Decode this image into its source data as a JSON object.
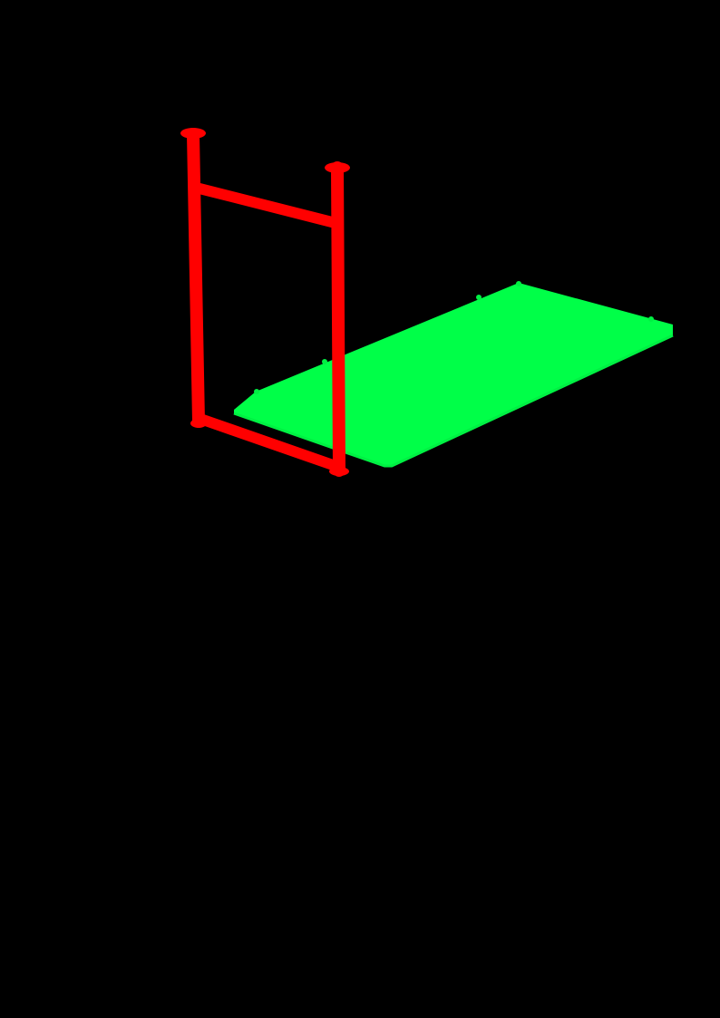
{
  "colors": {
    "background": "#000000",
    "frame": "#ff0000",
    "panel": "#00ff48",
    "panel_edge": "#00f043"
  },
  "objects": {
    "frame_name": "red-ladder-frame",
    "panel_name": "green-panel"
  }
}
